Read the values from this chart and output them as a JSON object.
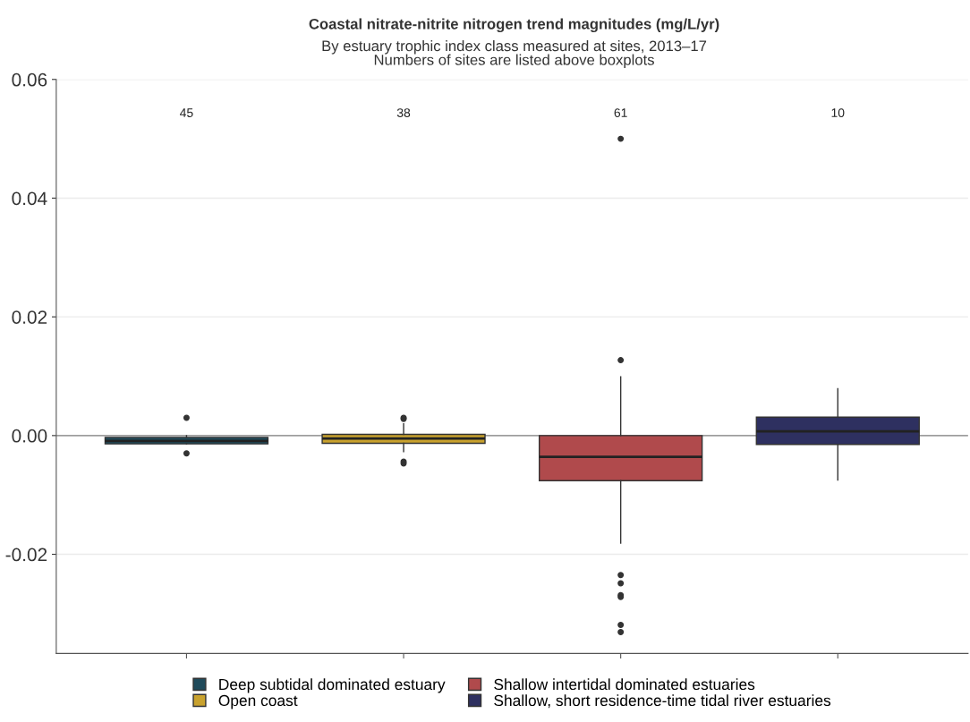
{
  "chart_data": {
    "type": "box",
    "title": "Coastal nitrate-nitrite nitrogen trend magnitudes (mg/L/yr)",
    "subtitle": "By estuary trophic index class measured at sites, 2013–17\nNumbers of sites are listed above boxplots",
    "categories": [
      null,
      null,
      null,
      null
    ],
    "series": [
      {
        "name": "Deep subtidal dominated estuary",
        "color": "#1f4a5a",
        "boxes": [
          {
            "low": -0.0014,
            "q1": -0.0014,
            "median": -0.0009,
            "q3": -0.0003,
            "high": 0.0,
            "outliers": [
              0.003,
              -0.003
            ]
          },
          null,
          null,
          null
        ]
      },
      {
        "name": "Open coast",
        "color": "#c9a22e",
        "boxes": [
          null,
          {
            "low": -0.0027,
            "q1": -0.0013,
            "median": -0.0005,
            "q3": 0.0002,
            "high": 0.002,
            "outliers": [
              0.003,
              0.0028,
              -0.0044,
              -0.0047
            ]
          },
          null,
          null
        ]
      },
      {
        "name": "Shallow intertidal dominated estuaries",
        "color": "#b04a4c",
        "boxes": [
          null,
          null,
          {
            "low": -0.0181,
            "q1": -0.0076,
            "median": -0.0036,
            "q3": 0.0,
            "high": 0.0099,
            "outliers": [
              0.05,
              0.0127,
              -0.0235,
              -0.0249,
              -0.0269,
              -0.0272,
              -0.0319,
              -0.0331
            ]
          },
          null
        ]
      },
      {
        "name": "Shallow, short residence-time tidal river estuaries",
        "color": "#2e3060",
        "boxes": [
          null,
          null,
          null,
          {
            "low": -0.0075,
            "q1": -0.0015,
            "median": 0.0007,
            "q3": 0.0031,
            "high": 0.0079
          }
        ]
      }
    ],
    "annotations": [
      "45",
      "38",
      "61",
      "10"
    ],
    "ylim": [
      -0.0367,
      0.06
    ],
    "yticks": [
      {
        "value": -0.02,
        "label": "-0.02"
      },
      {
        "value": 0,
        "label": "0.00"
      },
      {
        "value": 0.02,
        "label": "0.02"
      },
      {
        "value": 0.04,
        "label": "0.04"
      },
      {
        "value": 0.06,
        "label": "0.06"
      }
    ],
    "ref_lines": [
      {
        "axis": "y",
        "value": 0,
        "label": null,
        "color": "#808080"
      }
    ],
    "grid": "y",
    "legend": "bottom",
    "tick_labels": "y"
  }
}
